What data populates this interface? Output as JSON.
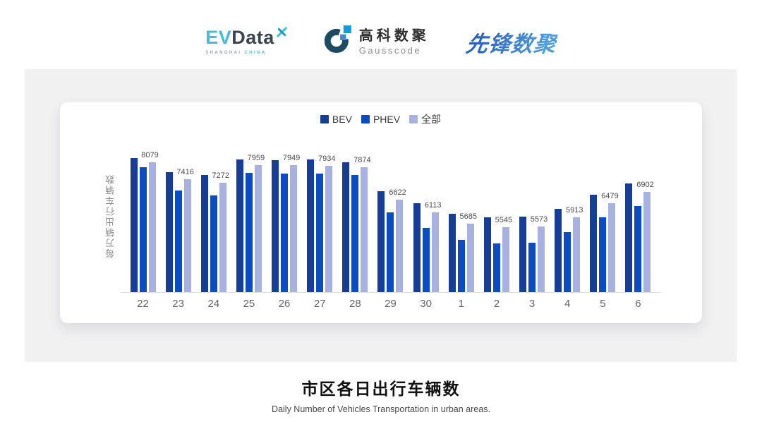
{
  "header": {
    "evdata": {
      "ev": "EV",
      "data": "Data",
      "caption_left": "SHANGHAI",
      "caption_right": "CHINA"
    },
    "gausscode": {
      "cn": "高科数聚",
      "en": "Gausscode"
    },
    "pioneer": {
      "text": "先锋数聚"
    }
  },
  "chart_data": {
    "type": "bar",
    "title": "市区各日出行车辆数",
    "subtitle": "Daily Number of Vehicles Transportation in urban areas.",
    "ylabel": "每万辆出行车辆数",
    "xlabel": "",
    "categories": [
      "22",
      "23",
      "24",
      "25",
      "26",
      "27",
      "28",
      "29",
      "30",
      "1",
      "2",
      "3",
      "4",
      "5",
      "6"
    ],
    "series": [
      {
        "name": "BEV",
        "color": "#173e96",
        "labeled": false,
        "values": [
          8240,
          7690,
          7570,
          8180,
          8160,
          8170,
          8060,
          6950,
          6460,
          6060,
          5910,
          5940,
          6240,
          6810,
          7240
        ]
      },
      {
        "name": "PHEV",
        "color": "#0b4cc3",
        "labeled": false,
        "values": [
          7870,
          6980,
          6770,
          7660,
          7640,
          7620,
          7580,
          6100,
          5510,
          5030,
          4900,
          4920,
          5340,
          5930,
          6370
        ]
      },
      {
        "name": "全部",
        "color": "#a8b2e0",
        "labeled": true,
        "values": [
          8079,
          7416,
          7272,
          7959,
          7949,
          7934,
          7874,
          6622,
          6113,
          5685,
          5545,
          5573,
          5913,
          6479,
          6902
        ]
      }
    ],
    "ylim": [
      3000,
      8400
    ],
    "grid": false,
    "legend_position": "top",
    "note": "BEV and PHEV values estimated from bar heights; 全部 values are the printed data labels"
  },
  "footer": {
    "title": "市区各日出行车辆数",
    "subtitle": "Daily Number of Vehicles Transportation in urban areas."
  }
}
